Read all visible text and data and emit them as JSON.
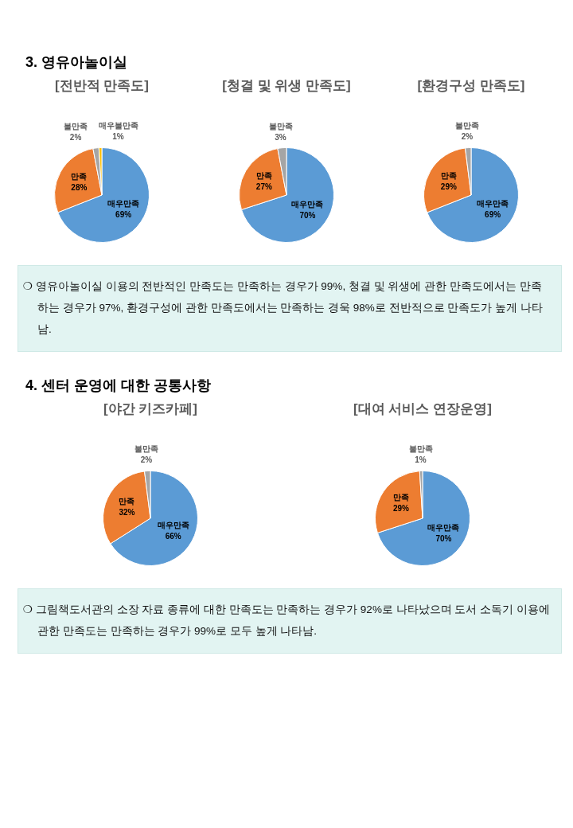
{
  "chart_data": [
    {
      "type": "other",
      "title": "3. 영유아놀이실"
    },
    {
      "type": "pie",
      "title": "[전반적 만족도]",
      "categories": [
        "매우만족",
        "만족",
        "불만족",
        "매우불만족"
      ],
      "values": [
        69,
        28,
        2,
        1
      ],
      "value_labels": [
        "69%",
        "28%",
        "2%",
        "1%"
      ],
      "colors": [
        "#5b9bd5",
        "#ed7d31",
        "#a5a5a5",
        "#ffc000"
      ]
    },
    {
      "type": "pie",
      "title": "[청결 및 위생 만족도]",
      "categories": [
        "매우만족",
        "만족",
        "불만족"
      ],
      "values": [
        70,
        27,
        3
      ],
      "value_labels": [
        "70%",
        "27%",
        "3%"
      ],
      "colors": [
        "#5b9bd5",
        "#ed7d31",
        "#a5a5a5"
      ]
    },
    {
      "type": "pie",
      "title": "[환경구성 만족도]",
      "categories": [
        "매우만족",
        "만족",
        "불만족"
      ],
      "values": [
        69,
        29,
        2
      ],
      "value_labels": [
        "69%",
        "29%",
        "2%"
      ],
      "colors": [
        "#5b9bd5",
        "#ed7d31",
        "#a5a5a5"
      ]
    },
    {
      "type": "other",
      "annotations": [
        "❍ 영유아놀이실 이용의 전반적인 만족도는 만족하는 경우가 99%, 청결 및 위생에 관한 만족도에서는 만족하는 경우가 97%, 환경구성에 관한 만족도에서는 만족하는 경욱 98%로 전반적으로 만족도가 높게 나타남."
      ]
    },
    {
      "type": "other",
      "title": "4. 센터 운영에 대한 공통사항"
    },
    {
      "type": "pie",
      "title": "[야간 키즈카페]",
      "categories": [
        "매우만족",
        "만족",
        "불만족"
      ],
      "values": [
        66,
        32,
        2
      ],
      "value_labels": [
        "66%",
        "32%",
        "2%"
      ],
      "colors": [
        "#5b9bd5",
        "#ed7d31",
        "#a5a5a5"
      ]
    },
    {
      "type": "pie",
      "title": "[대여 서비스 연장운영]",
      "categories": [
        "매우만족",
        "만족",
        "불만족"
      ],
      "values": [
        70,
        29,
        1
      ],
      "value_labels": [
        "70%",
        "29%",
        "1%"
      ],
      "colors": [
        "#5b9bd5",
        "#ed7d31",
        "#a5a5a5"
      ]
    },
    {
      "type": "other",
      "annotations": [
        "❍ 그림책도서관의 소장 자료 종류에 대한 만족도는 만족하는 경우가 92%로 나타났으며 도서 소독기 이용에 관한 만족도는 만족하는 경우가 99%로 모두 높게 나타남."
      ]
    }
  ]
}
